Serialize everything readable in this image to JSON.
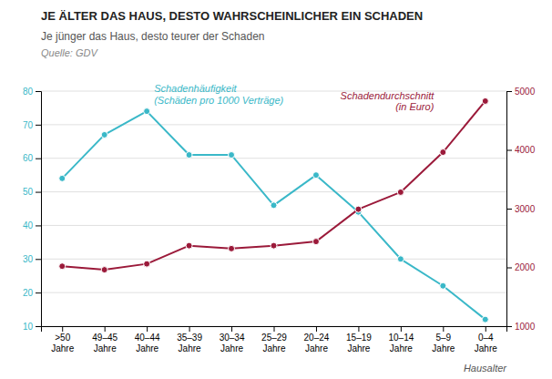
{
  "chart_data": {
    "type": "line",
    "title": "JE ÄLTER DAS HAUS, DESTO WAHRSCHEINLICHER EIN SCHADEN",
    "subtitle": "Je jünger das Haus, desto teurer der Schaden",
    "source": "Quelle: GDV",
    "x_label": "Hausalter",
    "categories": [
      ">50\nJahre",
      "49–45\nJahre",
      "40–44\nJahre",
      "35–39\nJahre",
      "30–34\nJahre",
      "25–29\nJahre",
      "20–24\nJahre",
      "15–19\nJahre",
      "10–14\nJahre",
      "5–9\nJahre",
      "0–4\nJahre"
    ],
    "series": [
      {
        "name": "Schadenhäufigkeit\n(Schäden pro 1000 Verträge)",
        "color": "#3ab8c8",
        "marker": "circle",
        "values": [
          54,
          67,
          74,
          61,
          61,
          46,
          55,
          44,
          30,
          22,
          12
        ]
      },
      {
        "name": "Schadendurchschnitt\n(in Euro)",
        "color": "#9b1a3a",
        "marker": "circle",
        "axis": "y2",
        "values": [
          2020,
          1960,
          2060,
          2370,
          2320,
          2370,
          2440,
          2990,
          3280,
          3960,
          4830
        ]
      }
    ],
    "ylim": [
      10,
      80
    ],
    "yticks": [
      10,
      20,
      30,
      40,
      50,
      60,
      70,
      80
    ],
    "y2lim": [
      1000,
      5000
    ],
    "y2ticks": [
      1000,
      2000,
      3000,
      4000,
      5000
    ],
    "grid": true
  }
}
